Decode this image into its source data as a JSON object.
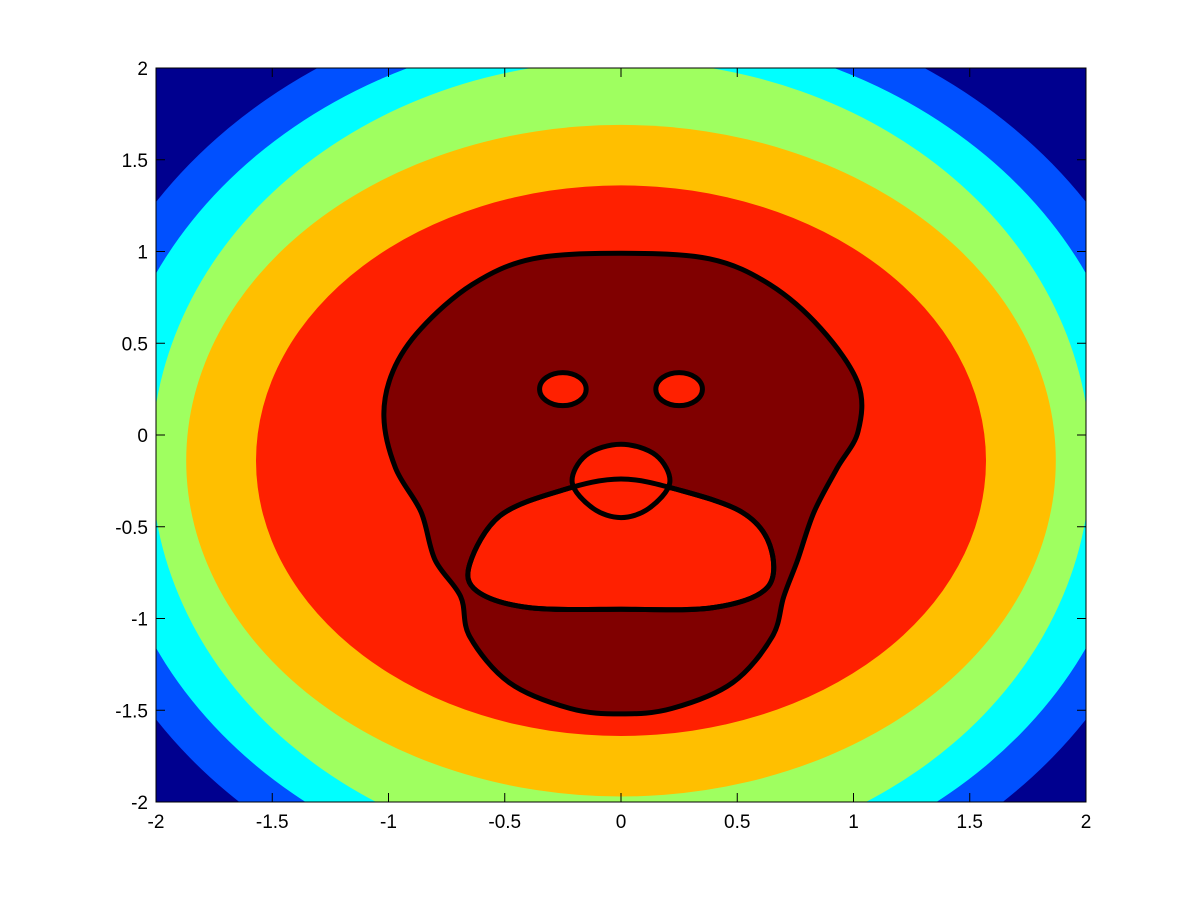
{
  "chart_data": {
    "type": "contourf",
    "title": "",
    "xlabel": "",
    "ylabel": "",
    "xlim": [
      -2,
      2
    ],
    "ylim": [
      -2,
      2
    ],
    "grid": false,
    "legend": "none",
    "xticks": [
      -2,
      -1.5,
      -1,
      -0.5,
      0,
      0.5,
      1,
      1.5,
      2
    ],
    "yticks": [
      -2,
      -1.5,
      -1,
      -0.5,
      0,
      0.5,
      1,
      1.5,
      2
    ],
    "xtick_labels": [
      "-2",
      "-1.5",
      "-1",
      "-0.5",
      "0",
      "0.5",
      "1",
      "1.5",
      "2"
    ],
    "ytick_labels": [
      "-2",
      "-1.5",
      "-1",
      "-0.5",
      "0",
      "0.5",
      "1",
      "1.5",
      "2"
    ],
    "filled_bands": [
      {
        "level": 1,
        "color": "#00008f",
        "outer_rx": null,
        "outer_ry": null
      },
      {
        "level": 2,
        "color": "#0050ff",
        "outer_rx": 2.4,
        "outer_ry": 2.55
      },
      {
        "level": 3,
        "color": "#00ffff",
        "outer_rx": 2.22,
        "outer_ry": 2.35
      },
      {
        "level": 4,
        "color": "#9fff60",
        "outer_rx": 2.02,
        "outer_ry": 2.18
      },
      {
        "level": 5,
        "color": "#ffbf00",
        "outer_rx": 1.87,
        "outer_ry": 1.83
      },
      {
        "level": 6,
        "color": "#ff2000",
        "outer_rx": 1.57,
        "outer_ry": 1.5
      },
      {
        "level": 7,
        "color": "#800000",
        "outer_rx": null,
        "outer_ry": null
      }
    ],
    "contour_line_color": "#000000",
    "face_outline": [
      [
        -1.02,
        0.1
      ],
      [
        -0.98,
        0.35
      ],
      [
        -0.86,
        0.58
      ],
      [
        -0.64,
        0.82
      ],
      [
        -0.38,
        0.96
      ],
      [
        0.0,
        0.99
      ],
      [
        0.38,
        0.96
      ],
      [
        0.64,
        0.82
      ],
      [
        0.86,
        0.58
      ],
      [
        1.02,
        0.28
      ],
      [
        1.02,
        0.02
      ],
      [
        0.93,
        -0.18
      ],
      [
        0.83,
        -0.42
      ],
      [
        0.76,
        -0.68
      ],
      [
        0.7,
        -0.88
      ],
      [
        0.65,
        -1.1
      ],
      [
        0.48,
        -1.35
      ],
      [
        0.22,
        -1.49
      ],
      [
        0.0,
        -1.52
      ],
      [
        -0.22,
        -1.49
      ],
      [
        -0.48,
        -1.35
      ],
      [
        -0.65,
        -1.1
      ],
      [
        -0.69,
        -0.88
      ],
      [
        -0.8,
        -0.68
      ],
      [
        -0.86,
        -0.42
      ],
      [
        -0.97,
        -0.18
      ]
    ],
    "left_eye": {
      "cx": -0.25,
      "cy": 0.25,
      "rx": 0.1,
      "ry": 0.09
    },
    "right_eye": {
      "cx": 0.25,
      "cy": 0.25,
      "rx": 0.1,
      "ry": 0.09
    },
    "nose": [
      [
        0.0,
        -0.05
      ],
      [
        0.15,
        -0.11
      ],
      [
        0.21,
        -0.26
      ],
      [
        0.12,
        -0.4
      ],
      [
        0.0,
        -0.45
      ],
      [
        -0.12,
        -0.4
      ],
      [
        -0.21,
        -0.26
      ],
      [
        -0.15,
        -0.11
      ]
    ],
    "mouth": [
      [
        0.0,
        -0.24
      ],
      [
        0.25,
        -0.3
      ],
      [
        0.52,
        -0.42
      ],
      [
        0.64,
        -0.6
      ],
      [
        0.63,
        -0.83
      ],
      [
        0.4,
        -0.94
      ],
      [
        0.0,
        -0.95
      ],
      [
        -0.4,
        -0.94
      ],
      [
        -0.62,
        -0.85
      ],
      [
        -0.65,
        -0.7
      ],
      [
        -0.52,
        -0.44
      ],
      [
        -0.25,
        -0.3
      ]
    ]
  }
}
